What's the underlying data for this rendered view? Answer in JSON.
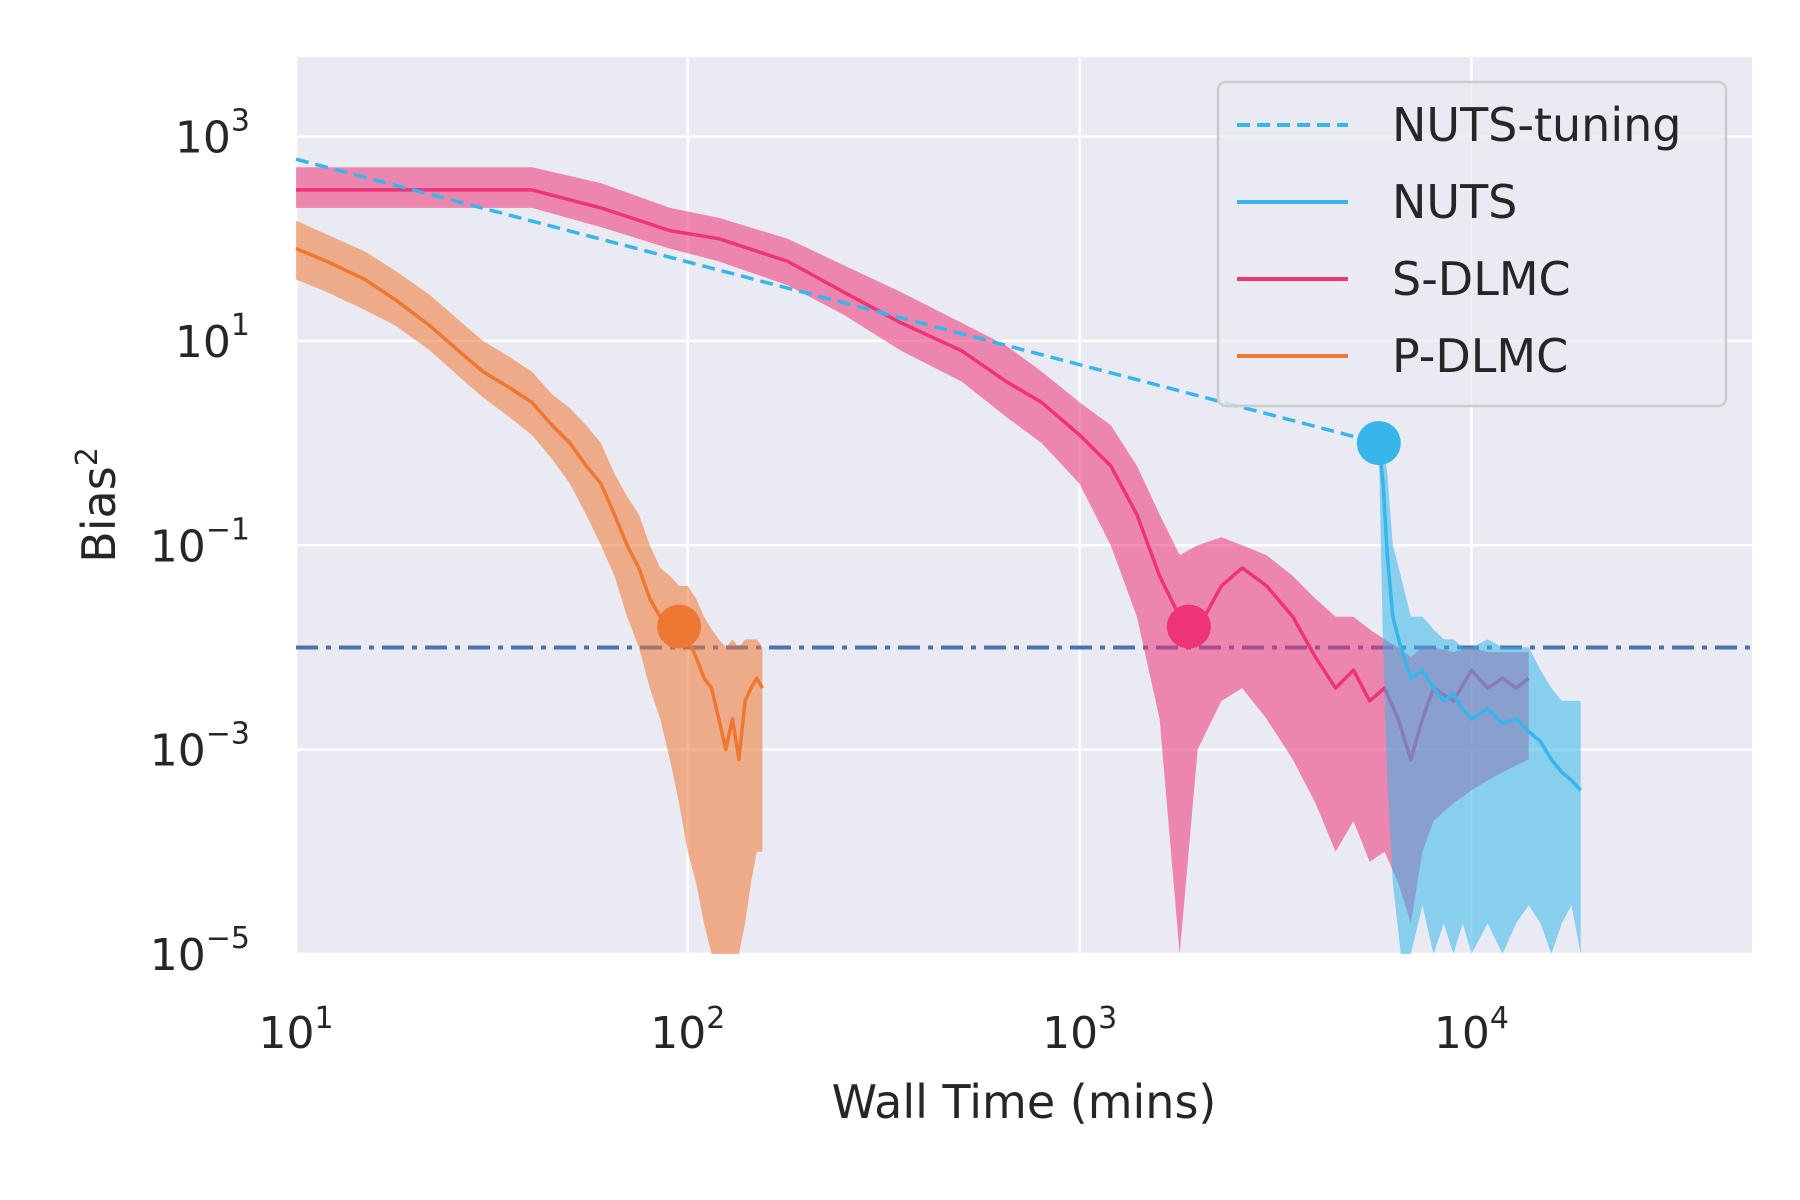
{
  "chart_data": {
    "type": "line",
    "title": "",
    "xlabel": "Wall Time (mins)",
    "ylabel_base": "Bias",
    "ylabel_sup": "2",
    "xscale": "log",
    "yscale": "log",
    "xlim": [
      10,
      52000
    ],
    "ylim": [
      1e-05,
      6000
    ],
    "x_ticks": [
      {
        "value": 10,
        "base": "10",
        "exp": "1"
      },
      {
        "value": 100,
        "base": "10",
        "exp": "2"
      },
      {
        "value": 1000,
        "base": "10",
        "exp": "3"
      },
      {
        "value": 10000,
        "base": "10",
        "exp": "4"
      }
    ],
    "y_ticks": [
      {
        "value": 1000,
        "base": "10",
        "exp": "3"
      },
      {
        "value": 10,
        "base": "10",
        "exp": "1"
      },
      {
        "value": 0.1,
        "base": "10",
        "exp": "−1"
      },
      {
        "value": 0.001,
        "base": "10",
        "exp": "−3"
      },
      {
        "value": 1e-05,
        "base": "10",
        "exp": "−5"
      }
    ],
    "grid": true,
    "legend_position": "top-right",
    "threshold": {
      "y": 0.01,
      "color": "#4c72b0",
      "style": "dash-dot"
    },
    "series": [
      {
        "name": "NUTS-tuning",
        "color": "#36b6ea",
        "style": "dashed",
        "x": [
          10,
          5800
        ],
        "y": [
          600,
          1.0
        ],
        "band_low": [],
        "band_high": [],
        "marker": null
      },
      {
        "name": "NUTS",
        "color": "#36b6ea",
        "style": "solid",
        "x": [
          5800,
          5950,
          6100,
          6300,
          6600,
          7000,
          7500,
          8000,
          8500,
          9000,
          9500,
          10000,
          11000,
          12000,
          13000,
          14000,
          15000,
          16000,
          17000,
          18000,
          19000
        ],
        "y": [
          1.0,
          0.4,
          0.08,
          0.02,
          0.01,
          0.005,
          0.006,
          0.004,
          0.003,
          0.0035,
          0.0025,
          0.002,
          0.0025,
          0.0018,
          0.002,
          0.0015,
          0.0012,
          0.0008,
          0.0006,
          0.0005,
          0.0004
        ],
        "band_low": [
          0.9,
          0.01,
          0.0005,
          5e-05,
          1e-05,
          1e-05,
          3e-05,
          1e-05,
          2e-05,
          1e-05,
          2e-05,
          1e-05,
          2e-05,
          1e-05,
          2e-05,
          3e-05,
          2e-05,
          1e-05,
          2e-05,
          3e-05,
          1e-05
        ],
        "band_high": [
          1.2,
          1.0,
          0.5,
          0.1,
          0.05,
          0.02,
          0.02,
          0.015,
          0.012,
          0.012,
          0.01,
          0.01,
          0.012,
          0.01,
          0.01,
          0.01,
          0.006,
          0.004,
          0.003,
          0.003,
          0.003
        ],
        "marker": {
          "x": 5800,
          "y": 1.0
        }
      },
      {
        "name": "S-DLMC",
        "color": "#ee3377",
        "style": "solid",
        "x": [
          10,
          20,
          40,
          60,
          90,
          120,
          180,
          250,
          350,
          500,
          650,
          800,
          1000,
          1200,
          1400,
          1600,
          1800,
          2000,
          2300,
          2600,
          3000,
          3500,
          4000,
          4500,
          5000,
          5500,
          6000,
          6500,
          7000,
          7500,
          8000,
          9000,
          10000,
          11000,
          12000,
          13000,
          14000
        ],
        "y": [
          300,
          300,
          300,
          200,
          120,
          100,
          60,
          30,
          15,
          8,
          4,
          2.5,
          1.2,
          0.6,
          0.2,
          0.05,
          0.02,
          0.015,
          0.04,
          0.06,
          0.04,
          0.02,
          0.008,
          0.004,
          0.006,
          0.003,
          0.004,
          0.002,
          0.0008,
          0.002,
          0.004,
          0.003,
          0.006,
          0.004,
          0.005,
          0.004,
          0.005
        ],
        "band_low": [
          200,
          200,
          200,
          130,
          80,
          60,
          35,
          18,
          8,
          4,
          1.8,
          1.0,
          0.4,
          0.1,
          0.02,
          0.002,
          1e-05,
          0.001,
          0.003,
          0.004,
          0.002,
          0.0008,
          0.0003,
          0.0001,
          0.0002,
          8e-05,
          0.0001,
          5e-05,
          2e-05,
          0.0001,
          0.0002,
          0.0003,
          0.0004,
          0.0005,
          0.0006,
          0.0007,
          0.0008
        ],
        "band_high": [
          500,
          500,
          500,
          350,
          200,
          160,
          100,
          55,
          30,
          15,
          9,
          5,
          2.5,
          1.5,
          0.6,
          0.2,
          0.08,
          0.1,
          0.12,
          0.1,
          0.08,
          0.05,
          0.03,
          0.02,
          0.02,
          0.015,
          0.012,
          0.01,
          0.008,
          0.01,
          0.01,
          0.009,
          0.01,
          0.009,
          0.009,
          0.009,
          0.009
        ],
        "marker": {
          "x": 1900,
          "y": 0.016
        }
      },
      {
        "name": "P-DLMC",
        "color": "#ee7733",
        "style": "solid",
        "x": [
          10,
          12,
          15,
          18,
          22,
          26,
          30,
          35,
          40,
          45,
          50,
          55,
          60,
          65,
          70,
          75,
          80,
          85,
          90,
          95,
          100,
          105,
          110,
          115,
          120,
          125,
          130,
          135,
          140,
          145,
          150,
          155
        ],
        "y": [
          80,
          60,
          40,
          25,
          14,
          8,
          5,
          3.5,
          2.5,
          1.5,
          1.0,
          0.6,
          0.4,
          0.2,
          0.1,
          0.06,
          0.03,
          0.02,
          0.016,
          0.015,
          0.012,
          0.008,
          0.005,
          0.004,
          0.002,
          0.001,
          0.002,
          0.0008,
          0.003,
          0.004,
          0.005,
          0.004
        ],
        "band_low": [
          40,
          30,
          20,
          14,
          8,
          4.5,
          2.8,
          1.8,
          1.2,
          0.7,
          0.4,
          0.2,
          0.1,
          0.05,
          0.02,
          0.01,
          0.004,
          0.002,
          0.0008,
          0.0003,
          0.0001,
          5e-05,
          2e-05,
          1e-05,
          1e-05,
          1e-05,
          1e-05,
          1e-05,
          2e-05,
          5e-05,
          0.0001,
          0.0001
        ],
        "band_high": [
          150,
          110,
          75,
          48,
          28,
          16,
          10,
          7,
          5,
          3,
          2.2,
          1.5,
          1.0,
          0.5,
          0.3,
          0.2,
          0.1,
          0.06,
          0.05,
          0.04,
          0.04,
          0.03,
          0.02,
          0.015,
          0.012,
          0.01,
          0.012,
          0.01,
          0.012,
          0.012,
          0.012,
          0.01
        ],
        "marker": {
          "x": 95,
          "y": 0.016
        }
      }
    ]
  }
}
